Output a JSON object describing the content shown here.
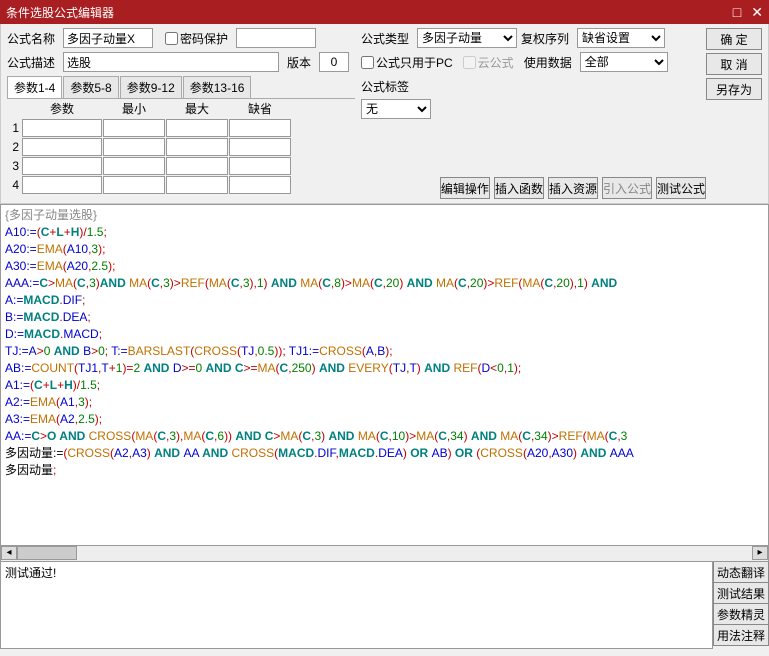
{
  "title": "条件选股公式编辑器",
  "labels": {
    "name": "公式名称",
    "pwd": "密码保护",
    "type": "公式类型",
    "reinvest": "复权序列",
    "desc": "公式描述",
    "ver": "版本",
    "pconly": "公式只用于PC",
    "cloud": "云公式",
    "usedata": "使用数据",
    "tag": "公式标签"
  },
  "buttons": {
    "ok": "确 定",
    "cancel": "取 消",
    "saveas": "另存为",
    "editop": "编辑操作",
    "insfunc": "插入函数",
    "insres": "插入资源",
    "impf": "引入公式",
    "testf": "测试公式",
    "dyntrans": "动态翻译",
    "testres": "测试结果",
    "paramwiz": "参数精灵",
    "usage": "用法注释"
  },
  "values": {
    "name": "多因子动量X",
    "desc": "选股",
    "ver": "0",
    "type": "多因子动量",
    "reinvest": "缺省设置",
    "usedata": "全部",
    "tag": "无"
  },
  "tabs": [
    "参数1-4",
    "参数5-8",
    "参数9-12",
    "参数13-16"
  ],
  "paramHeaders": [
    "参数",
    "最小",
    "最大",
    "缺省"
  ],
  "rowNums": [
    1,
    2,
    3,
    4
  ],
  "code_title": "{多因子动量选股}",
  "code": [
    [
      [
        "A10:=",
        "b"
      ],
      [
        "(",
        "r"
      ],
      [
        "C",
        "t"
      ],
      [
        "+",
        "r"
      ],
      [
        "L",
        "t"
      ],
      [
        "+",
        "r"
      ],
      [
        "H",
        "t"
      ],
      [
        ")",
        "r"
      ],
      [
        "/",
        "r"
      ],
      [
        "1.5",
        "g"
      ],
      [
        ";",
        "r"
      ]
    ],
    [
      [
        "A20:=",
        "b"
      ],
      [
        "EMA",
        "o"
      ],
      [
        "(",
        "r"
      ],
      [
        "A10",
        "b"
      ],
      [
        ",",
        "r"
      ],
      [
        "3",
        "g"
      ],
      [
        ")",
        "r"
      ],
      [
        ";",
        "r"
      ]
    ],
    [
      [
        "A30:=",
        "b"
      ],
      [
        "EMA",
        "o"
      ],
      [
        "(",
        "r"
      ],
      [
        "A20",
        "b"
      ],
      [
        ",",
        "r"
      ],
      [
        "2.5",
        "g"
      ],
      [
        ")",
        "r"
      ],
      [
        ";",
        "r"
      ]
    ],
    [
      [
        "AAA:=",
        "b"
      ],
      [
        "C",
        "t"
      ],
      [
        ">",
        "r"
      ],
      [
        "MA",
        "o"
      ],
      [
        "(",
        "r"
      ],
      [
        "C",
        "t"
      ],
      [
        ",",
        "r"
      ],
      [
        "3",
        "g"
      ],
      [
        ")",
        "r"
      ],
      [
        "AND ",
        "t"
      ],
      [
        "MA",
        "o"
      ],
      [
        "(",
        "r"
      ],
      [
        "C",
        "t"
      ],
      [
        ",",
        "r"
      ],
      [
        "3",
        "g"
      ],
      [
        ")>",
        "r"
      ],
      [
        "REF",
        "o"
      ],
      [
        "(",
        "r"
      ],
      [
        "MA",
        "o"
      ],
      [
        "(",
        "r"
      ],
      [
        "C",
        "t"
      ],
      [
        ",",
        "r"
      ],
      [
        "3",
        "g"
      ],
      [
        "),",
        "r"
      ],
      [
        "1",
        "g"
      ],
      [
        ") ",
        "r"
      ],
      [
        "AND ",
        "t"
      ],
      [
        "MA",
        "o"
      ],
      [
        "(",
        "r"
      ],
      [
        "C",
        "t"
      ],
      [
        ",",
        "r"
      ],
      [
        "8",
        "g"
      ],
      [
        ")>",
        "r"
      ],
      [
        "MA",
        "o"
      ],
      [
        "(",
        "r"
      ],
      [
        "C",
        "t"
      ],
      [
        ",",
        "r"
      ],
      [
        "20",
        "g"
      ],
      [
        ") ",
        "r"
      ],
      [
        "AND ",
        "t"
      ],
      [
        "MA",
        "o"
      ],
      [
        "(",
        "r"
      ],
      [
        "C",
        "t"
      ],
      [
        ",",
        "r"
      ],
      [
        "20",
        "g"
      ],
      [
        ")>",
        "r"
      ],
      [
        "REF",
        "o"
      ],
      [
        "(",
        "r"
      ],
      [
        "MA",
        "o"
      ],
      [
        "(",
        "r"
      ],
      [
        "C",
        "t"
      ],
      [
        ",",
        "r"
      ],
      [
        "20",
        "g"
      ],
      [
        "),",
        "r"
      ],
      [
        "1",
        "g"
      ],
      [
        ") ",
        "r"
      ],
      [
        "AND",
        "t"
      ]
    ],
    [
      [
        "A:=",
        "b"
      ],
      [
        "MACD",
        "t"
      ],
      [
        ".",
        "r"
      ],
      [
        "DIF",
        "b"
      ],
      [
        ";",
        "r"
      ]
    ],
    [
      [
        "B:=",
        "b"
      ],
      [
        "MACD",
        "t"
      ],
      [
        ".",
        "r"
      ],
      [
        "DEA",
        "b"
      ],
      [
        ";",
        "r"
      ]
    ],
    [
      [
        "D:=",
        "b"
      ],
      [
        "MACD",
        "t"
      ],
      [
        ".",
        "r"
      ],
      [
        "MACD",
        "b"
      ],
      [
        ";",
        "r"
      ]
    ],
    [
      [
        "TJ:=",
        "b"
      ],
      [
        "A",
        "b"
      ],
      [
        ">",
        "r"
      ],
      [
        "0 ",
        "g"
      ],
      [
        "AND ",
        "t"
      ],
      [
        "B",
        "b"
      ],
      [
        ">",
        "r"
      ],
      [
        "0",
        "g"
      ],
      [
        "; ",
        "r"
      ],
      [
        "T:=",
        "b"
      ],
      [
        "BARSLAST",
        "o"
      ],
      [
        "(",
        "r"
      ],
      [
        "CROSS",
        "o"
      ],
      [
        "(",
        "r"
      ],
      [
        "TJ",
        "b"
      ],
      [
        ",",
        "r"
      ],
      [
        "0.5",
        "g"
      ],
      [
        ")); ",
        "r"
      ],
      [
        "TJ1:=",
        "b"
      ],
      [
        "CROSS",
        "o"
      ],
      [
        "(",
        "r"
      ],
      [
        "A",
        "b"
      ],
      [
        ",",
        "r"
      ],
      [
        "B",
        "b"
      ],
      [
        ");",
        "r"
      ]
    ],
    [
      [
        "AB:=",
        "b"
      ],
      [
        "COUNT",
        "o"
      ],
      [
        "(",
        "r"
      ],
      [
        "TJ1",
        "b"
      ],
      [
        ",",
        "r"
      ],
      [
        "T",
        "b"
      ],
      [
        "+",
        "r"
      ],
      [
        "1",
        "g"
      ],
      [
        ")=",
        "r"
      ],
      [
        "2 ",
        "g"
      ],
      [
        "AND ",
        "t"
      ],
      [
        "D",
        "b"
      ],
      [
        ">=",
        "r"
      ],
      [
        "0 ",
        "g"
      ],
      [
        "AND ",
        "t"
      ],
      [
        "C",
        "t"
      ],
      [
        ">=",
        "r"
      ],
      [
        "MA",
        "o"
      ],
      [
        "(",
        "r"
      ],
      [
        "C",
        "t"
      ],
      [
        ",",
        "r"
      ],
      [
        "250",
        "g"
      ],
      [
        ") ",
        "r"
      ],
      [
        "AND ",
        "t"
      ],
      [
        "EVERY",
        "o"
      ],
      [
        "(",
        "r"
      ],
      [
        "TJ",
        "b"
      ],
      [
        ",",
        "r"
      ],
      [
        "T",
        "b"
      ],
      [
        ") ",
        "r"
      ],
      [
        "AND ",
        "t"
      ],
      [
        "REF",
        "o"
      ],
      [
        "(",
        "r"
      ],
      [
        "D",
        "b"
      ],
      [
        "<",
        "r"
      ],
      [
        "0",
        "g"
      ],
      [
        ",",
        "r"
      ],
      [
        "1",
        "g"
      ],
      [
        ");",
        "r"
      ]
    ],
    [
      [
        "A1:=",
        "b"
      ],
      [
        "(",
        "r"
      ],
      [
        "C",
        "t"
      ],
      [
        "+",
        "r"
      ],
      [
        "L",
        "t"
      ],
      [
        "+",
        "r"
      ],
      [
        "H",
        "t"
      ],
      [
        ")",
        "r"
      ],
      [
        "/",
        "r"
      ],
      [
        "1.5",
        "g"
      ],
      [
        ";",
        "r"
      ]
    ],
    [
      [
        "A2:=",
        "b"
      ],
      [
        "EMA",
        "o"
      ],
      [
        "(",
        "r"
      ],
      [
        "A1",
        "b"
      ],
      [
        ",",
        "r"
      ],
      [
        "3",
        "g"
      ],
      [
        ")",
        "r"
      ],
      [
        ";",
        "r"
      ]
    ],
    [
      [
        "A3:=",
        "b"
      ],
      [
        "EMA",
        "o"
      ],
      [
        "(",
        "r"
      ],
      [
        "A2",
        "b"
      ],
      [
        ",",
        "r"
      ],
      [
        "2.5",
        "g"
      ],
      [
        ")",
        "r"
      ],
      [
        ";",
        "r"
      ]
    ],
    [
      [
        "AA:=",
        "b"
      ],
      [
        "C",
        "t"
      ],
      [
        ">",
        "r"
      ],
      [
        "O ",
        "t"
      ],
      [
        "AND ",
        "t"
      ],
      [
        "CROSS",
        "o"
      ],
      [
        "(",
        "r"
      ],
      [
        "MA",
        "o"
      ],
      [
        "(",
        "r"
      ],
      [
        "C",
        "t"
      ],
      [
        ",",
        "r"
      ],
      [
        "3",
        "g"
      ],
      [
        "),",
        "r"
      ],
      [
        "MA",
        "o"
      ],
      [
        "(",
        "r"
      ],
      [
        "C",
        "t"
      ],
      [
        ",",
        "r"
      ],
      [
        "6",
        "g"
      ],
      [
        ")) ",
        "r"
      ],
      [
        "AND ",
        "t"
      ],
      [
        "C",
        "t"
      ],
      [
        ">",
        "r"
      ],
      [
        "MA",
        "o"
      ],
      [
        "(",
        "r"
      ],
      [
        "C",
        "t"
      ],
      [
        ",",
        "r"
      ],
      [
        "3",
        "g"
      ],
      [
        ") ",
        "r"
      ],
      [
        "AND ",
        "t"
      ],
      [
        "MA",
        "o"
      ],
      [
        "(",
        "r"
      ],
      [
        "C",
        "t"
      ],
      [
        ",",
        "r"
      ],
      [
        "10",
        "g"
      ],
      [
        ")>",
        "r"
      ],
      [
        "MA",
        "o"
      ],
      [
        "(",
        "r"
      ],
      [
        "C",
        "t"
      ],
      [
        ",",
        "r"
      ],
      [
        "34",
        "g"
      ],
      [
        ") ",
        "r"
      ],
      [
        "AND ",
        "t"
      ],
      [
        "MA",
        "o"
      ],
      [
        "(",
        "r"
      ],
      [
        "C",
        "t"
      ],
      [
        ",",
        "r"
      ],
      [
        "34",
        "g"
      ],
      [
        ")>",
        "r"
      ],
      [
        "REF",
        "o"
      ],
      [
        "(",
        "r"
      ],
      [
        "MA",
        "o"
      ],
      [
        "(",
        "r"
      ],
      [
        "C",
        "t"
      ],
      [
        ",",
        "r"
      ],
      [
        "3",
        "g"
      ]
    ],
    [
      [
        "多因动量:=",
        "k"
      ],
      [
        "(",
        "r"
      ],
      [
        "CROSS",
        "o"
      ],
      [
        "(",
        "r"
      ],
      [
        "A2",
        "b"
      ],
      [
        ",",
        "r"
      ],
      [
        "A3",
        "b"
      ],
      [
        ") ",
        "r"
      ],
      [
        "AND ",
        "t"
      ],
      [
        "AA ",
        "b"
      ],
      [
        "AND ",
        "t"
      ],
      [
        "CROSS",
        "o"
      ],
      [
        "(",
        "r"
      ],
      [
        "MACD",
        "t"
      ],
      [
        ".",
        "r"
      ],
      [
        "DIF",
        "b"
      ],
      [
        ",",
        "r"
      ],
      [
        "MACD",
        "t"
      ],
      [
        ".",
        "r"
      ],
      [
        "DEA",
        "b"
      ],
      [
        ") ",
        "r"
      ],
      [
        "OR ",
        "t"
      ],
      [
        "AB",
        "b"
      ],
      [
        ") ",
        "r"
      ],
      [
        "OR ",
        "t"
      ],
      [
        "(",
        "r"
      ],
      [
        "CROSS",
        "o"
      ],
      [
        "(",
        "r"
      ],
      [
        "A20",
        "b"
      ],
      [
        ",",
        "r"
      ],
      [
        "A30",
        "b"
      ],
      [
        ") ",
        "r"
      ],
      [
        "AND ",
        "t"
      ],
      [
        "AAA",
        "b"
      ]
    ],
    [
      [
        "多因动量",
        "k"
      ],
      [
        ";",
        "r"
      ]
    ]
  ],
  "statusText": "测试通过!"
}
